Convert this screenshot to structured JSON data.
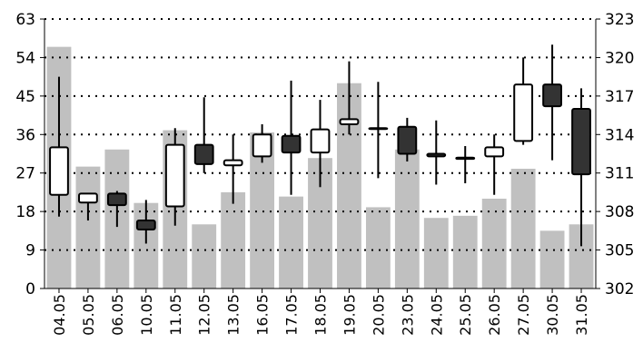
{
  "chart_data": {
    "type": "candlestick",
    "categories": [
      "04.05",
      "05.05",
      "06.05",
      "10.05",
      "11.05",
      "12.05",
      "13.05",
      "16.05",
      "17.05",
      "18.05",
      "19.05",
      "20.05",
      "23.05",
      "24.05",
      "25.05",
      "26.05",
      "27.05",
      "30.05",
      "31.05"
    ],
    "series": [
      {
        "kind": "bar",
        "axis": "left",
        "values": [
          56.5,
          28.5,
          32.5,
          20.0,
          37.0,
          15.0,
          22.5,
          36.5,
          21.5,
          30.5,
          48.0,
          19.0,
          32.5,
          16.5,
          17.0,
          21.0,
          28.0,
          13.5,
          15.0
        ]
      },
      {
        "kind": "candlestick",
        "axis": "right",
        "ohlc": [
          {
            "open": 309.3,
            "high": 318.5,
            "low": 307.6,
            "close": 313.0
          },
          {
            "open": 308.7,
            "high": 309.2,
            "low": 307.3,
            "close": 309.4
          },
          {
            "open": 309.4,
            "high": 309.6,
            "low": 306.8,
            "close": 308.5
          },
          {
            "open": 307.3,
            "high": 308.9,
            "low": 305.5,
            "close": 306.6
          },
          {
            "open": 308.4,
            "high": 314.5,
            "low": 306.9,
            "close": 313.2
          },
          {
            "open": 313.2,
            "high": 316.9,
            "low": 311.0,
            "close": 311.7
          },
          {
            "open": 311.6,
            "high": 314.0,
            "low": 308.6,
            "close": 312.0
          },
          {
            "open": 312.3,
            "high": 314.8,
            "low": 311.8,
            "close": 314.0
          },
          {
            "open": 313.9,
            "high": 318.2,
            "low": 309.3,
            "close": 312.6
          },
          {
            "open": 312.6,
            "high": 316.7,
            "low": 309.9,
            "close": 314.4
          },
          {
            "open": 314.8,
            "high": 319.7,
            "low": 314.0,
            "close": 315.2
          },
          {
            "open": 314.5,
            "high": 318.1,
            "low": 310.6,
            "close": 314.5
          },
          {
            "open": 314.6,
            "high": 315.3,
            "low": 311.9,
            "close": 312.5
          },
          {
            "open": 312.5,
            "high": 315.1,
            "low": 310.1,
            "close": 312.3
          },
          {
            "open": 312.2,
            "high": 313.1,
            "low": 310.2,
            "close": 312.1
          },
          {
            "open": 312.3,
            "high": 314.0,
            "low": 309.3,
            "close": 313.0
          },
          {
            "open": 313.5,
            "high": 320.0,
            "low": 313.2,
            "close": 317.9
          },
          {
            "open": 317.9,
            "high": 321.0,
            "low": 312.0,
            "close": 316.2
          },
          {
            "open": 316.0,
            "high": 317.6,
            "low": 305.3,
            "close": 310.9
          }
        ]
      }
    ],
    "y_left": {
      "ticks": [
        "0",
        "9",
        "18",
        "27",
        "36",
        "45",
        "54",
        "63"
      ],
      "min": 0,
      "max": 63
    },
    "y_right": {
      "ticks": [
        "302",
        "305",
        "308",
        "311",
        "314",
        "317",
        "320",
        "323"
      ],
      "min": 302,
      "max": 323
    },
    "grid": "horizontal dotted",
    "colors": {
      "volume_bar": "#c0c0c0",
      "up_body": "#ffffff",
      "down_body": "#333333",
      "wick": "#000000"
    }
  }
}
